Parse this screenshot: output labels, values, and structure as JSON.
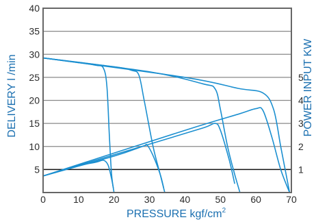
{
  "chart_data": {
    "type": "line",
    "xlabel": "PRESSURE kgf/cm",
    "xlabel_superscript": "2",
    "ylabel_left": "DELIVERY l /min",
    "ylabel_right": "POWER INPUT KW",
    "xlim": [
      0,
      70
    ],
    "ylim_left": [
      0,
      40
    ],
    "right_axis_scale": "1 KW per 5 l/min (aligned with left 5,10,15,20,25)",
    "x_ticks": [
      "0",
      "10",
      "20",
      "30",
      "40",
      "50",
      "60",
      "70"
    ],
    "y_ticks_left": [
      "5",
      "10",
      "15",
      "20",
      "25",
      "30",
      "35",
      "40"
    ],
    "y_ticks_right": [
      "1",
      "2",
      "3",
      "4",
      "5"
    ],
    "grid": "horizontal",
    "colors": {
      "curve": "#1b8fd0",
      "frame": "#666666",
      "grid": "#888888",
      "reference": "#111111",
      "axis_text": "#1a6fb0",
      "tick_text": "#2b2b2b"
    },
    "reference_line": {
      "delivery": 5
    },
    "series": [
      {
        "kind": "delivery",
        "x": [
          0,
          10,
          15,
          17,
          18,
          18.7,
          19.3,
          20
        ],
        "y": [
          29.2,
          28.2,
          27.6,
          27.0,
          23.0,
          12.0,
          4.0,
          0
        ]
      },
      {
        "kind": "delivery",
        "x": [
          0,
          20,
          25,
          27,
          28.5,
          31,
          33,
          34.3
        ],
        "y": [
          29.2,
          27.3,
          26.5,
          25.5,
          20.0,
          10.0,
          4.0,
          0
        ]
      },
      {
        "kind": "delivery",
        "x": [
          0,
          30,
          45,
          48.5,
          50,
          52,
          54,
          55.5
        ],
        "y": [
          29.2,
          26.2,
          23.6,
          22.5,
          18.0,
          10.0,
          4.0,
          0
        ]
      },
      {
        "kind": "delivery",
        "x": [
          0,
          40,
          55,
          62,
          65,
          67,
          68.5,
          69.5
        ],
        "y": [
          29.2,
          25.0,
          22.6,
          21.6,
          18.0,
          10.0,
          4.0,
          0
        ]
      },
      {
        "kind": "power",
        "x": [
          0,
          10,
          15,
          17,
          18.3,
          19.3,
          19.8
        ],
        "y": [
          3.6,
          5.8,
          6.6,
          7.0,
          6.0,
          3.0,
          1.0
        ]
      },
      {
        "kind": "power",
        "x": [
          0,
          20,
          28,
          29.3,
          31,
          33,
          34
        ],
        "y": [
          3.6,
          7.9,
          10.0,
          10.3,
          8.0,
          4.0,
          1.0
        ]
      },
      {
        "kind": "power",
        "x": [
          0,
          30,
          45,
          48.5,
          50,
          52.5,
          54
        ],
        "y": [
          3.6,
          10.5,
          14.0,
          15.0,
          13.5,
          7.0,
          2.0
        ]
      },
      {
        "kind": "power",
        "x": [
          0,
          40,
          55,
          60,
          62,
          64.5,
          67,
          69.5
        ],
        "y": [
          3.6,
          13.5,
          17.0,
          18.2,
          17.8,
          12.0,
          5.0,
          0
        ]
      }
    ]
  }
}
